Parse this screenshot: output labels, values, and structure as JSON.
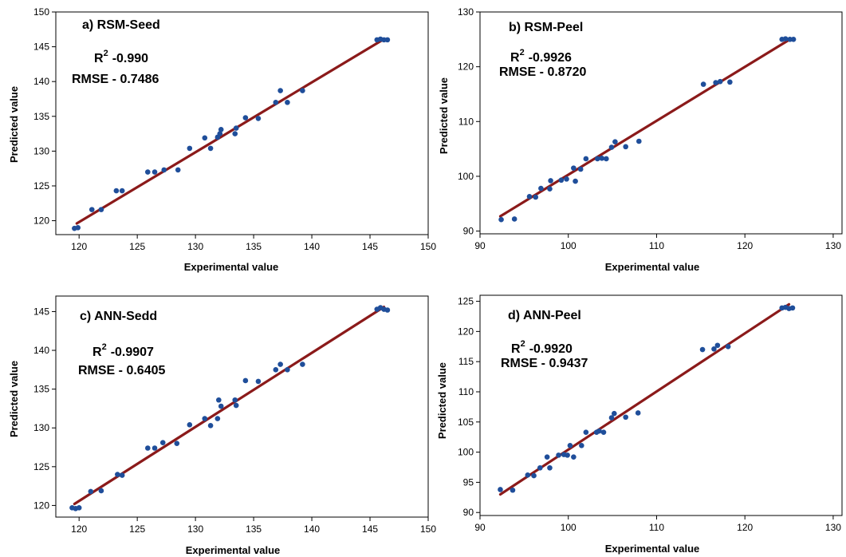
{
  "chart_data": [
    {
      "type": "scatter",
      "title": "a) RSM-Seed",
      "xlabel": "Experimental value",
      "ylabel": "Predicted value",
      "xlim": [
        118,
        150
      ],
      "ylim": [
        118,
        150
      ],
      "xticks": [
        120,
        125,
        130,
        135,
        140,
        145,
        150
      ],
      "yticks": [
        120,
        125,
        130,
        135,
        140,
        145,
        150
      ],
      "stats": {
        "r2_label": "R",
        "r2_sup": "2",
        "r2_value": "-0.990",
        "rmse": "RMSE - 0.7486"
      },
      "fit_line": {
        "x": [
          119.8,
          146.0
        ],
        "y": [
          119.6,
          145.9
        ]
      },
      "points": [
        {
          "x": 119.6,
          "y": 118.9
        },
        {
          "x": 119.9,
          "y": 119.0
        },
        {
          "x": 121.1,
          "y": 121.6
        },
        {
          "x": 121.9,
          "y": 121.6
        },
        {
          "x": 123.2,
          "y": 124.3
        },
        {
          "x": 123.7,
          "y": 124.3
        },
        {
          "x": 125.9,
          "y": 127.0
        },
        {
          "x": 126.5,
          "y": 127.0
        },
        {
          "x": 127.3,
          "y": 127.3
        },
        {
          "x": 128.5,
          "y": 127.3
        },
        {
          "x": 129.5,
          "y": 130.4
        },
        {
          "x": 130.8,
          "y": 131.9
        },
        {
          "x": 131.3,
          "y": 130.4
        },
        {
          "x": 131.9,
          "y": 132.0
        },
        {
          "x": 132.1,
          "y": 132.5
        },
        {
          "x": 132.2,
          "y": 133.1
        },
        {
          "x": 133.4,
          "y": 132.5
        },
        {
          "x": 133.5,
          "y": 133.3
        },
        {
          "x": 134.3,
          "y": 134.8
        },
        {
          "x": 135.4,
          "y": 134.7
        },
        {
          "x": 136.9,
          "y": 137.0
        },
        {
          "x": 137.3,
          "y": 138.7
        },
        {
          "x": 137.9,
          "y": 137.0
        },
        {
          "x": 139.2,
          "y": 138.7
        },
        {
          "x": 145.6,
          "y": 146.0
        },
        {
          "x": 145.9,
          "y": 146.1
        },
        {
          "x": 146.2,
          "y": 146.0
        },
        {
          "x": 146.5,
          "y": 146.0
        }
      ]
    },
    {
      "type": "scatter",
      "title": "b) RSM-Peel",
      "xlabel": "Experimental value",
      "ylabel": "Predicted value",
      "xlim": [
        90,
        131
      ],
      "ylim": [
        89.5,
        130
      ],
      "xticks": [
        90,
        100,
        110,
        120,
        130
      ],
      "yticks": [
        90,
        100,
        110,
        120,
        130
      ],
      "stats": {
        "r2_label": "R",
        "r2_sup": "2",
        "r2_value": "-0.9926",
        "rmse": "RMSE - 0.8720"
      },
      "fit_line": {
        "x": [
          92.3,
          125.0
        ],
        "y": [
          92.7,
          124.9
        ]
      },
      "points": [
        {
          "x": 92.4,
          "y": 92.1
        },
        {
          "x": 93.9,
          "y": 92.2
        },
        {
          "x": 95.6,
          "y": 96.3
        },
        {
          "x": 96.3,
          "y": 96.2
        },
        {
          "x": 96.9,
          "y": 97.8
        },
        {
          "x": 97.9,
          "y": 97.7
        },
        {
          "x": 98.0,
          "y": 99.2
        },
        {
          "x": 99.2,
          "y": 99.3
        },
        {
          "x": 99.8,
          "y": 99.5
        },
        {
          "x": 100.6,
          "y": 101.5
        },
        {
          "x": 100.8,
          "y": 99.1
        },
        {
          "x": 101.4,
          "y": 101.3
        },
        {
          "x": 102.0,
          "y": 103.2
        },
        {
          "x": 103.3,
          "y": 103.2
        },
        {
          "x": 103.8,
          "y": 103.3
        },
        {
          "x": 104.3,
          "y": 103.2
        },
        {
          "x": 104.9,
          "y": 105.3
        },
        {
          "x": 105.3,
          "y": 106.3
        },
        {
          "x": 106.5,
          "y": 105.4
        },
        {
          "x": 108.0,
          "y": 106.4
        },
        {
          "x": 115.3,
          "y": 116.8
        },
        {
          "x": 116.7,
          "y": 117.1
        },
        {
          "x": 117.2,
          "y": 117.3
        },
        {
          "x": 118.3,
          "y": 117.2
        },
        {
          "x": 124.2,
          "y": 125.0
        },
        {
          "x": 124.6,
          "y": 125.1
        },
        {
          "x": 125.1,
          "y": 125.0
        },
        {
          "x": 125.5,
          "y": 125.0
        }
      ]
    },
    {
      "type": "scatter",
      "title": "c) ANN-Sedd",
      "xlabel": "Experimental value",
      "ylabel": "Predicted value",
      "xlim": [
        118,
        150
      ],
      "ylim": [
        118.5,
        147
      ],
      "xticks": [
        120,
        125,
        130,
        135,
        140,
        145,
        150
      ],
      "yticks": [
        120,
        125,
        130,
        135,
        140,
        145
      ],
      "stats": {
        "r2_label": "R",
        "r2_sup": "2",
        "r2_value": "-0.9907",
        "rmse": "RMSE - 0.6405"
      },
      "fit_line": {
        "x": [
          119.6,
          146.2
        ],
        "y": [
          120.2,
          145.6
        ]
      },
      "points": [
        {
          "x": 119.4,
          "y": 119.7
        },
        {
          "x": 119.7,
          "y": 119.6
        },
        {
          "x": 120.0,
          "y": 119.7
        },
        {
          "x": 121.0,
          "y": 121.8
        },
        {
          "x": 121.9,
          "y": 121.9
        },
        {
          "x": 123.3,
          "y": 124.0
        },
        {
          "x": 123.7,
          "y": 123.9
        },
        {
          "x": 125.9,
          "y": 127.4
        },
        {
          "x": 126.5,
          "y": 127.4
        },
        {
          "x": 127.2,
          "y": 128.1
        },
        {
          "x": 128.4,
          "y": 128.0
        },
        {
          "x": 129.5,
          "y": 130.4
        },
        {
          "x": 130.8,
          "y": 131.2
        },
        {
          "x": 131.3,
          "y": 130.3
        },
        {
          "x": 131.9,
          "y": 131.2
        },
        {
          "x": 132.0,
          "y": 133.6
        },
        {
          "x": 132.2,
          "y": 132.8
        },
        {
          "x": 133.4,
          "y": 133.6
        },
        {
          "x": 133.5,
          "y": 132.9
        },
        {
          "x": 134.3,
          "y": 136.1
        },
        {
          "x": 135.4,
          "y": 136.0
        },
        {
          "x": 136.9,
          "y": 137.5
        },
        {
          "x": 137.3,
          "y": 138.2
        },
        {
          "x": 137.9,
          "y": 137.5
        },
        {
          "x": 139.2,
          "y": 138.2
        },
        {
          "x": 145.6,
          "y": 145.3
        },
        {
          "x": 145.9,
          "y": 145.5
        },
        {
          "x": 146.2,
          "y": 145.3
        },
        {
          "x": 146.5,
          "y": 145.2
        }
      ]
    },
    {
      "type": "scatter",
      "title": "d) ANN-Peel",
      "xlabel": "Experimental value",
      "ylabel": "Predicted value",
      "xlim": [
        90,
        131
      ],
      "ylim": [
        89.5,
        126
      ],
      "xticks": [
        90,
        100,
        110,
        120,
        130
      ],
      "yticks": [
        90,
        95,
        100,
        105,
        110,
        115,
        120,
        125
      ],
      "stats": {
        "r2_label": "R",
        "r2_sup": "2",
        "r2_value": "-0.9920",
        "rmse": "RMSE - 0.9437"
      },
      "fit_line": {
        "x": [
          92.3,
          125.0
        ],
        "y": [
          93.0,
          124.5
        ]
      },
      "points": [
        {
          "x": 92.3,
          "y": 93.8
        },
        {
          "x": 93.7,
          "y": 93.7
        },
        {
          "x": 95.4,
          "y": 96.2
        },
        {
          "x": 96.1,
          "y": 96.1
        },
        {
          "x": 96.8,
          "y": 97.4
        },
        {
          "x": 97.6,
          "y": 99.2
        },
        {
          "x": 97.9,
          "y": 97.4
        },
        {
          "x": 98.9,
          "y": 99.5
        },
        {
          "x": 99.5,
          "y": 99.6
        },
        {
          "x": 99.9,
          "y": 99.5
        },
        {
          "x": 100.2,
          "y": 101.1
        },
        {
          "x": 100.6,
          "y": 99.2
        },
        {
          "x": 101.5,
          "y": 101.1
        },
        {
          "x": 102.0,
          "y": 103.3
        },
        {
          "x": 103.2,
          "y": 103.3
        },
        {
          "x": 103.5,
          "y": 103.5
        },
        {
          "x": 104.0,
          "y": 103.3
        },
        {
          "x": 104.9,
          "y": 105.7
        },
        {
          "x": 105.2,
          "y": 106.4
        },
        {
          "x": 106.5,
          "y": 105.8
        },
        {
          "x": 107.9,
          "y": 106.5
        },
        {
          "x": 115.2,
          "y": 117.0
        },
        {
          "x": 116.5,
          "y": 117.1
        },
        {
          "x": 116.9,
          "y": 117.7
        },
        {
          "x": 118.1,
          "y": 117.5
        },
        {
          "x": 124.2,
          "y": 123.9
        },
        {
          "x": 124.6,
          "y": 124.0
        },
        {
          "x": 125.0,
          "y": 123.8
        },
        {
          "x": 125.4,
          "y": 123.9
        }
      ]
    }
  ]
}
